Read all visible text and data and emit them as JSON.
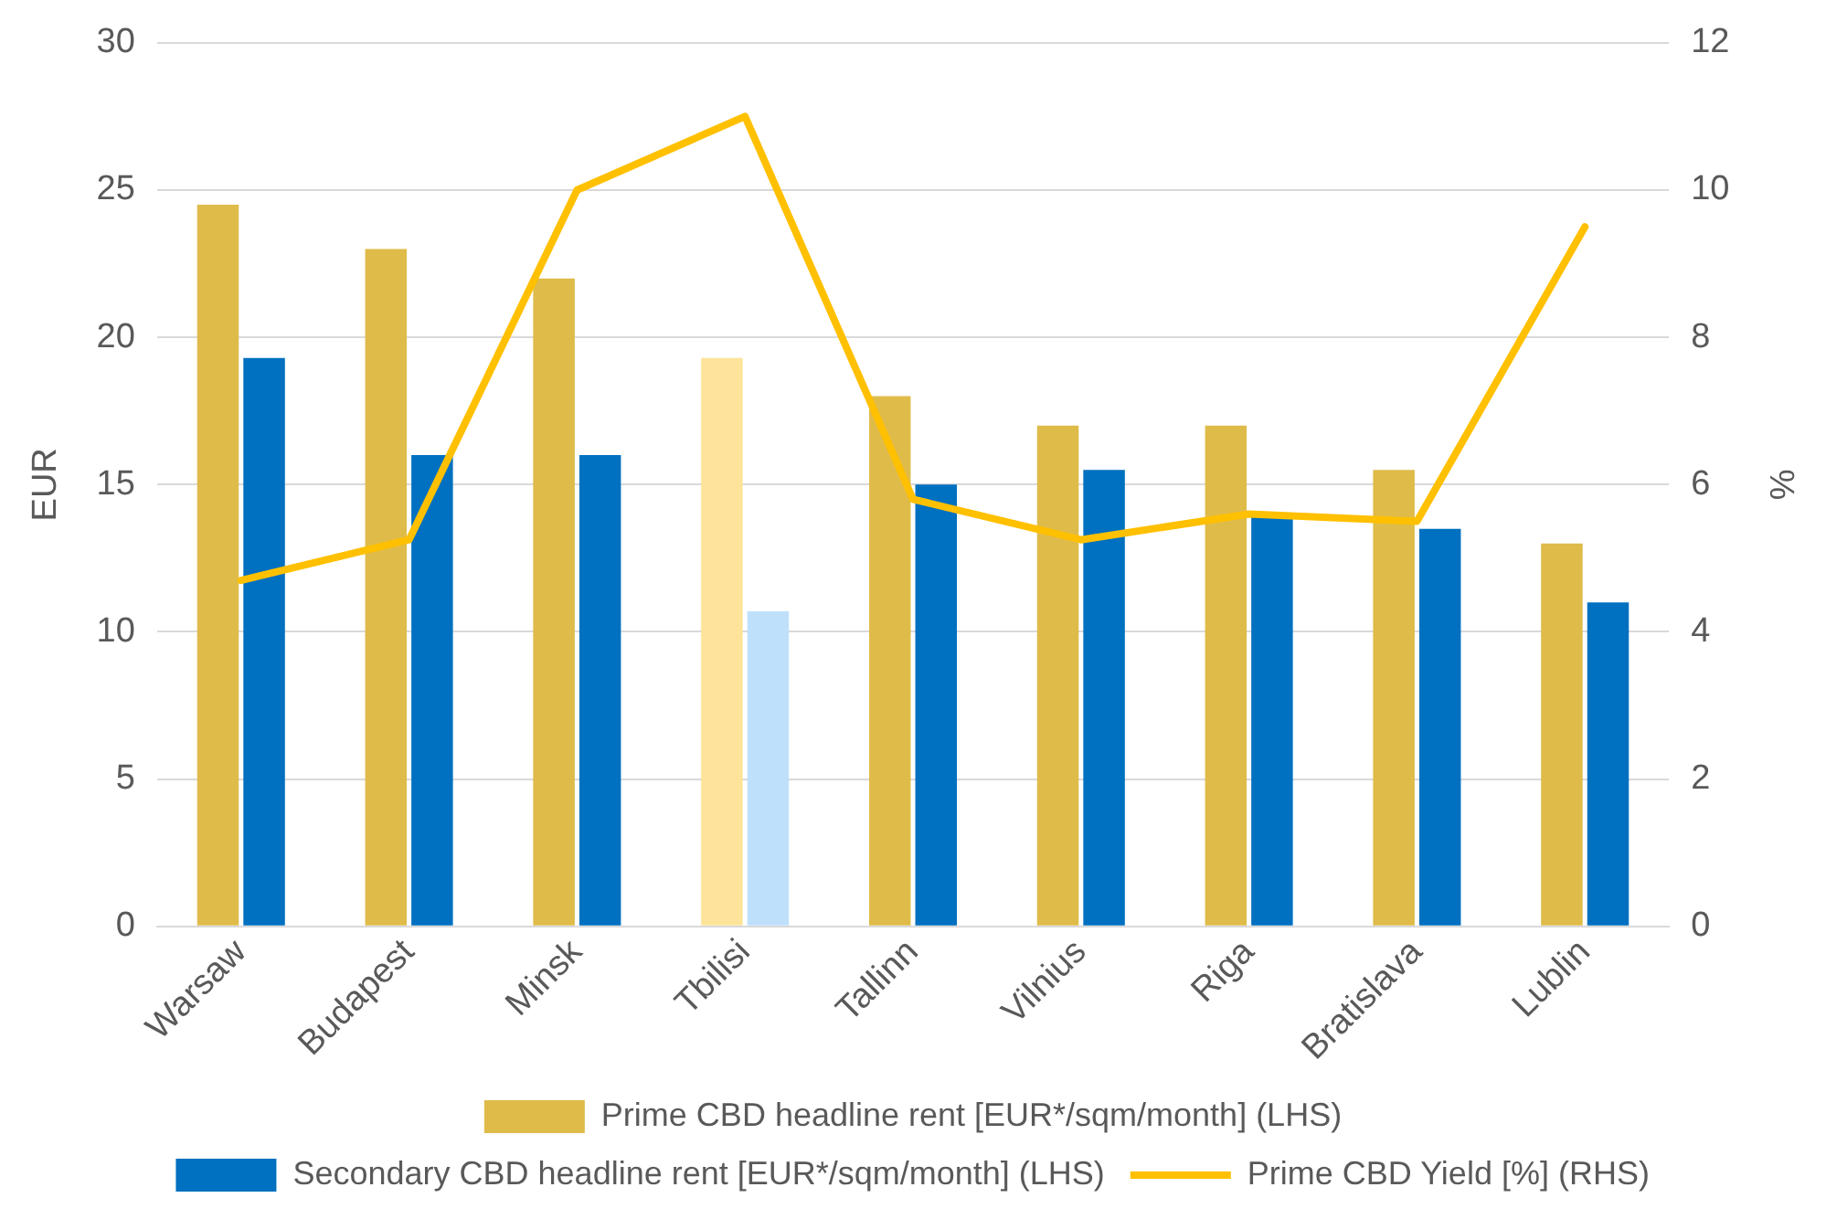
{
  "chart_data": {
    "type": "bar",
    "ylabel": "EUR",
    "y2label": "%",
    "categories": [
      "Warsaw",
      "Budapest",
      "Minsk",
      "Tbilisi",
      "Tallinn",
      "Vilnius",
      "Riga",
      "Bratislava",
      "Lublin"
    ],
    "series": [
      {
        "name": "Prime CBD headline rent [EUR*/sqm/month] (LHS)",
        "color": "#dfbb4a",
        "colors": [
          "#dfbb4a",
          "#dfbb4a",
          "#dfbb4a",
          "#fde49a",
          "#dfbb4a",
          "#dfbb4a",
          "#dfbb4a",
          "#dfbb4a",
          "#dfbb4a"
        ],
        "values": [
          24.5,
          23,
          22,
          19.3,
          18,
          17,
          17,
          15.5,
          13
        ]
      },
      {
        "name": "Secondary CBD headline rent [EUR*/sqm/month] (LHS)",
        "color": "#0070c0",
        "colors": [
          "#0070c0",
          "#0070c0",
          "#0070c0",
          "#bfe0fb",
          "#0070c0",
          "#0070c0",
          "#0070c0",
          "#0070c0",
          "#0070c0"
        ],
        "values": [
          19.3,
          16,
          16,
          10.7,
          15,
          15.5,
          14,
          13.5,
          11
        ]
      },
      {
        "name": "Prime CBD Yield [%] (RHS)",
        "type": "line",
        "axis": "y2",
        "color": "#ffc000",
        "marker": "none",
        "values": [
          4.7,
          5.25,
          10,
          11,
          5.8,
          5.25,
          5.6,
          5.5,
          9.5
        ]
      }
    ],
    "ylim": [
      0,
      30
    ],
    "yticks": [
      0,
      5,
      10,
      15,
      20,
      25,
      30
    ],
    "y2lim": [
      0,
      12
    ],
    "y2ticks": [
      0,
      2,
      4,
      6,
      8,
      10,
      12
    ],
    "grid": "y",
    "legend": "bottom"
  }
}
